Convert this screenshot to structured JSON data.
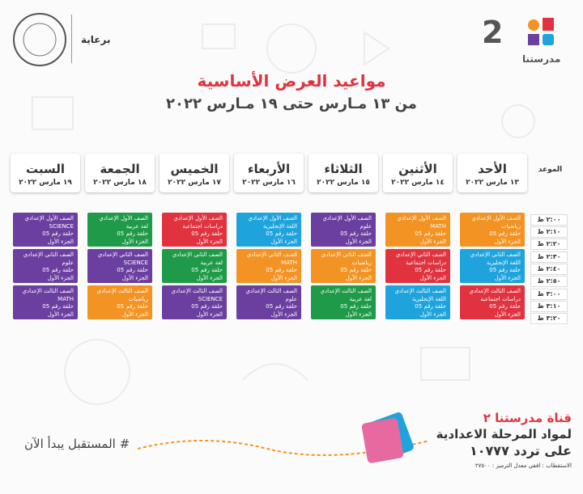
{
  "header": {
    "brand": "مدرستنا",
    "channel_number": "2",
    "sponsor": "برعاية"
  },
  "title": "مواعيد العرض الأساسية",
  "subtitle": "من ١٣ مـارس حتى ١٩ مـارس ٢٠٢٢",
  "schedule": {
    "time_header": "الموعد",
    "days": [
      {
        "name": "الأحد",
        "date": "١٣ مارس ٢٠٢٢"
      },
      {
        "name": "الأثنين",
        "date": "١٤ مارس ٢٠٢٢"
      },
      {
        "name": "الثلاثاء",
        "date": "١٥ مارس ٢٠٢٢"
      },
      {
        "name": "الأربعاء",
        "date": "١٦ مارس ٢٠٢٢"
      },
      {
        "name": "الخميس",
        "date": "١٧ مارس ٢٠٢٢"
      },
      {
        "name": "الجمعة",
        "date": "١٨ مارس ٢٠٢٢"
      },
      {
        "name": "السبت",
        "date": "١٩ مارس ٢٠٢٢"
      }
    ],
    "times": [
      "٢:٠٠ ظ",
      "٢:١٠ ظ",
      "٢:٢٠ ظ",
      "٢:٣٠ ظ",
      "٢:٤٠ ظ",
      "٢:٥٠ ظ",
      "٣:٠٠ ظ",
      "٣:١٠ ظ",
      "٣:٢٠ ظ"
    ],
    "rows": [
      [
        {
          "grade": "الصف الأول الإعدادي",
          "subject": "رياضيات",
          "episode": "حلقة رقم 05",
          "part": "الجزء الأول",
          "color": "#f39323"
        },
        {
          "grade": "الصف الأول الإعدادي",
          "subject": "MATH",
          "episode": "حلقة رقم 05",
          "part": "الجزء الأول",
          "color": "#f39323"
        },
        {
          "grade": "الصف الأول الإعدادي",
          "subject": "علوم",
          "episode": "حلقة رقم 05",
          "part": "الجزء الأول",
          "color": "#6b3fa0"
        },
        {
          "grade": "الصف الأول الإعدادي",
          "subject": "اللغة الإنجليزية",
          "episode": "حلقة رقم 05",
          "part": "الجزء الأول",
          "color": "#1fa3dc"
        },
        {
          "grade": "الصف الأول الإعدادي",
          "subject": "دراسات اجتماعية",
          "episode": "حلقة رقم 05",
          "part": "الجزء الأول",
          "color": "#e1323f"
        },
        {
          "grade": "الصف الأول الإعدادي",
          "subject": "لغة عربية",
          "episode": "حلقة رقم 05",
          "part": "الجزء الأول",
          "color": "#1f9a48"
        },
        {
          "grade": "الصف الأول الإعدادي",
          "subject": "SCIENCE",
          "episode": "حلقة رقم 05",
          "part": "الجزء الأول",
          "color": "#6b3fa0"
        }
      ],
      [
        {
          "grade": "الصف الثاني الإعدادي",
          "subject": "اللغة الإنجليزية",
          "episode": "حلقة رقم 05",
          "part": "الجزء الأول",
          "color": "#1fa3dc"
        },
        {
          "grade": "الصف الثاني الإعدادي",
          "subject": "دراسات اجتماعية",
          "episode": "حلقة رقم 05",
          "part": "الجزء الأول",
          "color": "#e1323f"
        },
        {
          "grade": "الصف الثاني الإعدادي",
          "subject": "رياضيات",
          "episode": "حلقة رقم 05",
          "part": "الجزء الأول",
          "color": "#f39323"
        },
        {
          "grade": "الصف الثاني الإعدادي",
          "subject": "MATH",
          "episode": "حلقة رقم 05",
          "part": "الجزء الأول",
          "color": "#f39323"
        },
        {
          "grade": "الصف الثاني الإعدادي",
          "subject": "لغة عربية",
          "episode": "حلقة رقم 05",
          "part": "الجزء الأول",
          "color": "#1f9a48"
        },
        {
          "grade": "الصف الثاني الإعدادي",
          "subject": "SCIENCE",
          "episode": "حلقة رقم 05",
          "part": "الجزء الأول",
          "color": "#6b3fa0"
        },
        {
          "grade": "الصف الثاني الإعدادي",
          "subject": "علوم",
          "episode": "حلقة رقم 05",
          "part": "الجزء الأول",
          "color": "#6b3fa0"
        }
      ],
      [
        {
          "grade": "الصف الثالث الإعدادي",
          "subject": "دراسات اجتماعية",
          "episode": "حلقة رقم 05",
          "part": "الجزء الأول",
          "color": "#e1323f"
        },
        {
          "grade": "الصف الثالث الإعدادي",
          "subject": "اللغة الإنجليزية",
          "episode": "حلقة رقم 05",
          "part": "الجزء الأول",
          "color": "#1fa3dc"
        },
        {
          "grade": "الصف الثالث الإعدادي",
          "subject": "لغة عربية",
          "episode": "حلقة رقم 05",
          "part": "الجزء الأول",
          "color": "#1f9a48"
        },
        {
          "grade": "الصف الثالث الإعدادي",
          "subject": "علوم",
          "episode": "حلقة رقم 05",
          "part": "الجزء الأول",
          "color": "#6b3fa0"
        },
        {
          "grade": "الصف الثالث الإعدادي",
          "subject": "SCIENCE",
          "episode": "حلقة رقم 05",
          "part": "الجزء الأول",
          "color": "#6b3fa0"
        },
        {
          "grade": "الصف الثالث الإعدادي",
          "subject": "رياضيات",
          "episode": "حلقة رقم 05",
          "part": "الجزء الأول",
          "color": "#f39323"
        },
        {
          "grade": "الصف الثالث الإعدادي",
          "subject": "MATH",
          "episode": "حلقة رقم 05",
          "part": "الجزء الأول",
          "color": "#6b3fa0"
        }
      ]
    ]
  },
  "footer": {
    "hashtag": "# المستقبل يبدأ الآن",
    "channel": "قناة مدرستنا ٢",
    "stage": "لمواد المرحلة الاعدادية",
    "frequency": "على تردد ١٠٧٧٧",
    "signal": "الاستقطاب : افقي معدل الترميز : ٢٧٥٠٠"
  }
}
